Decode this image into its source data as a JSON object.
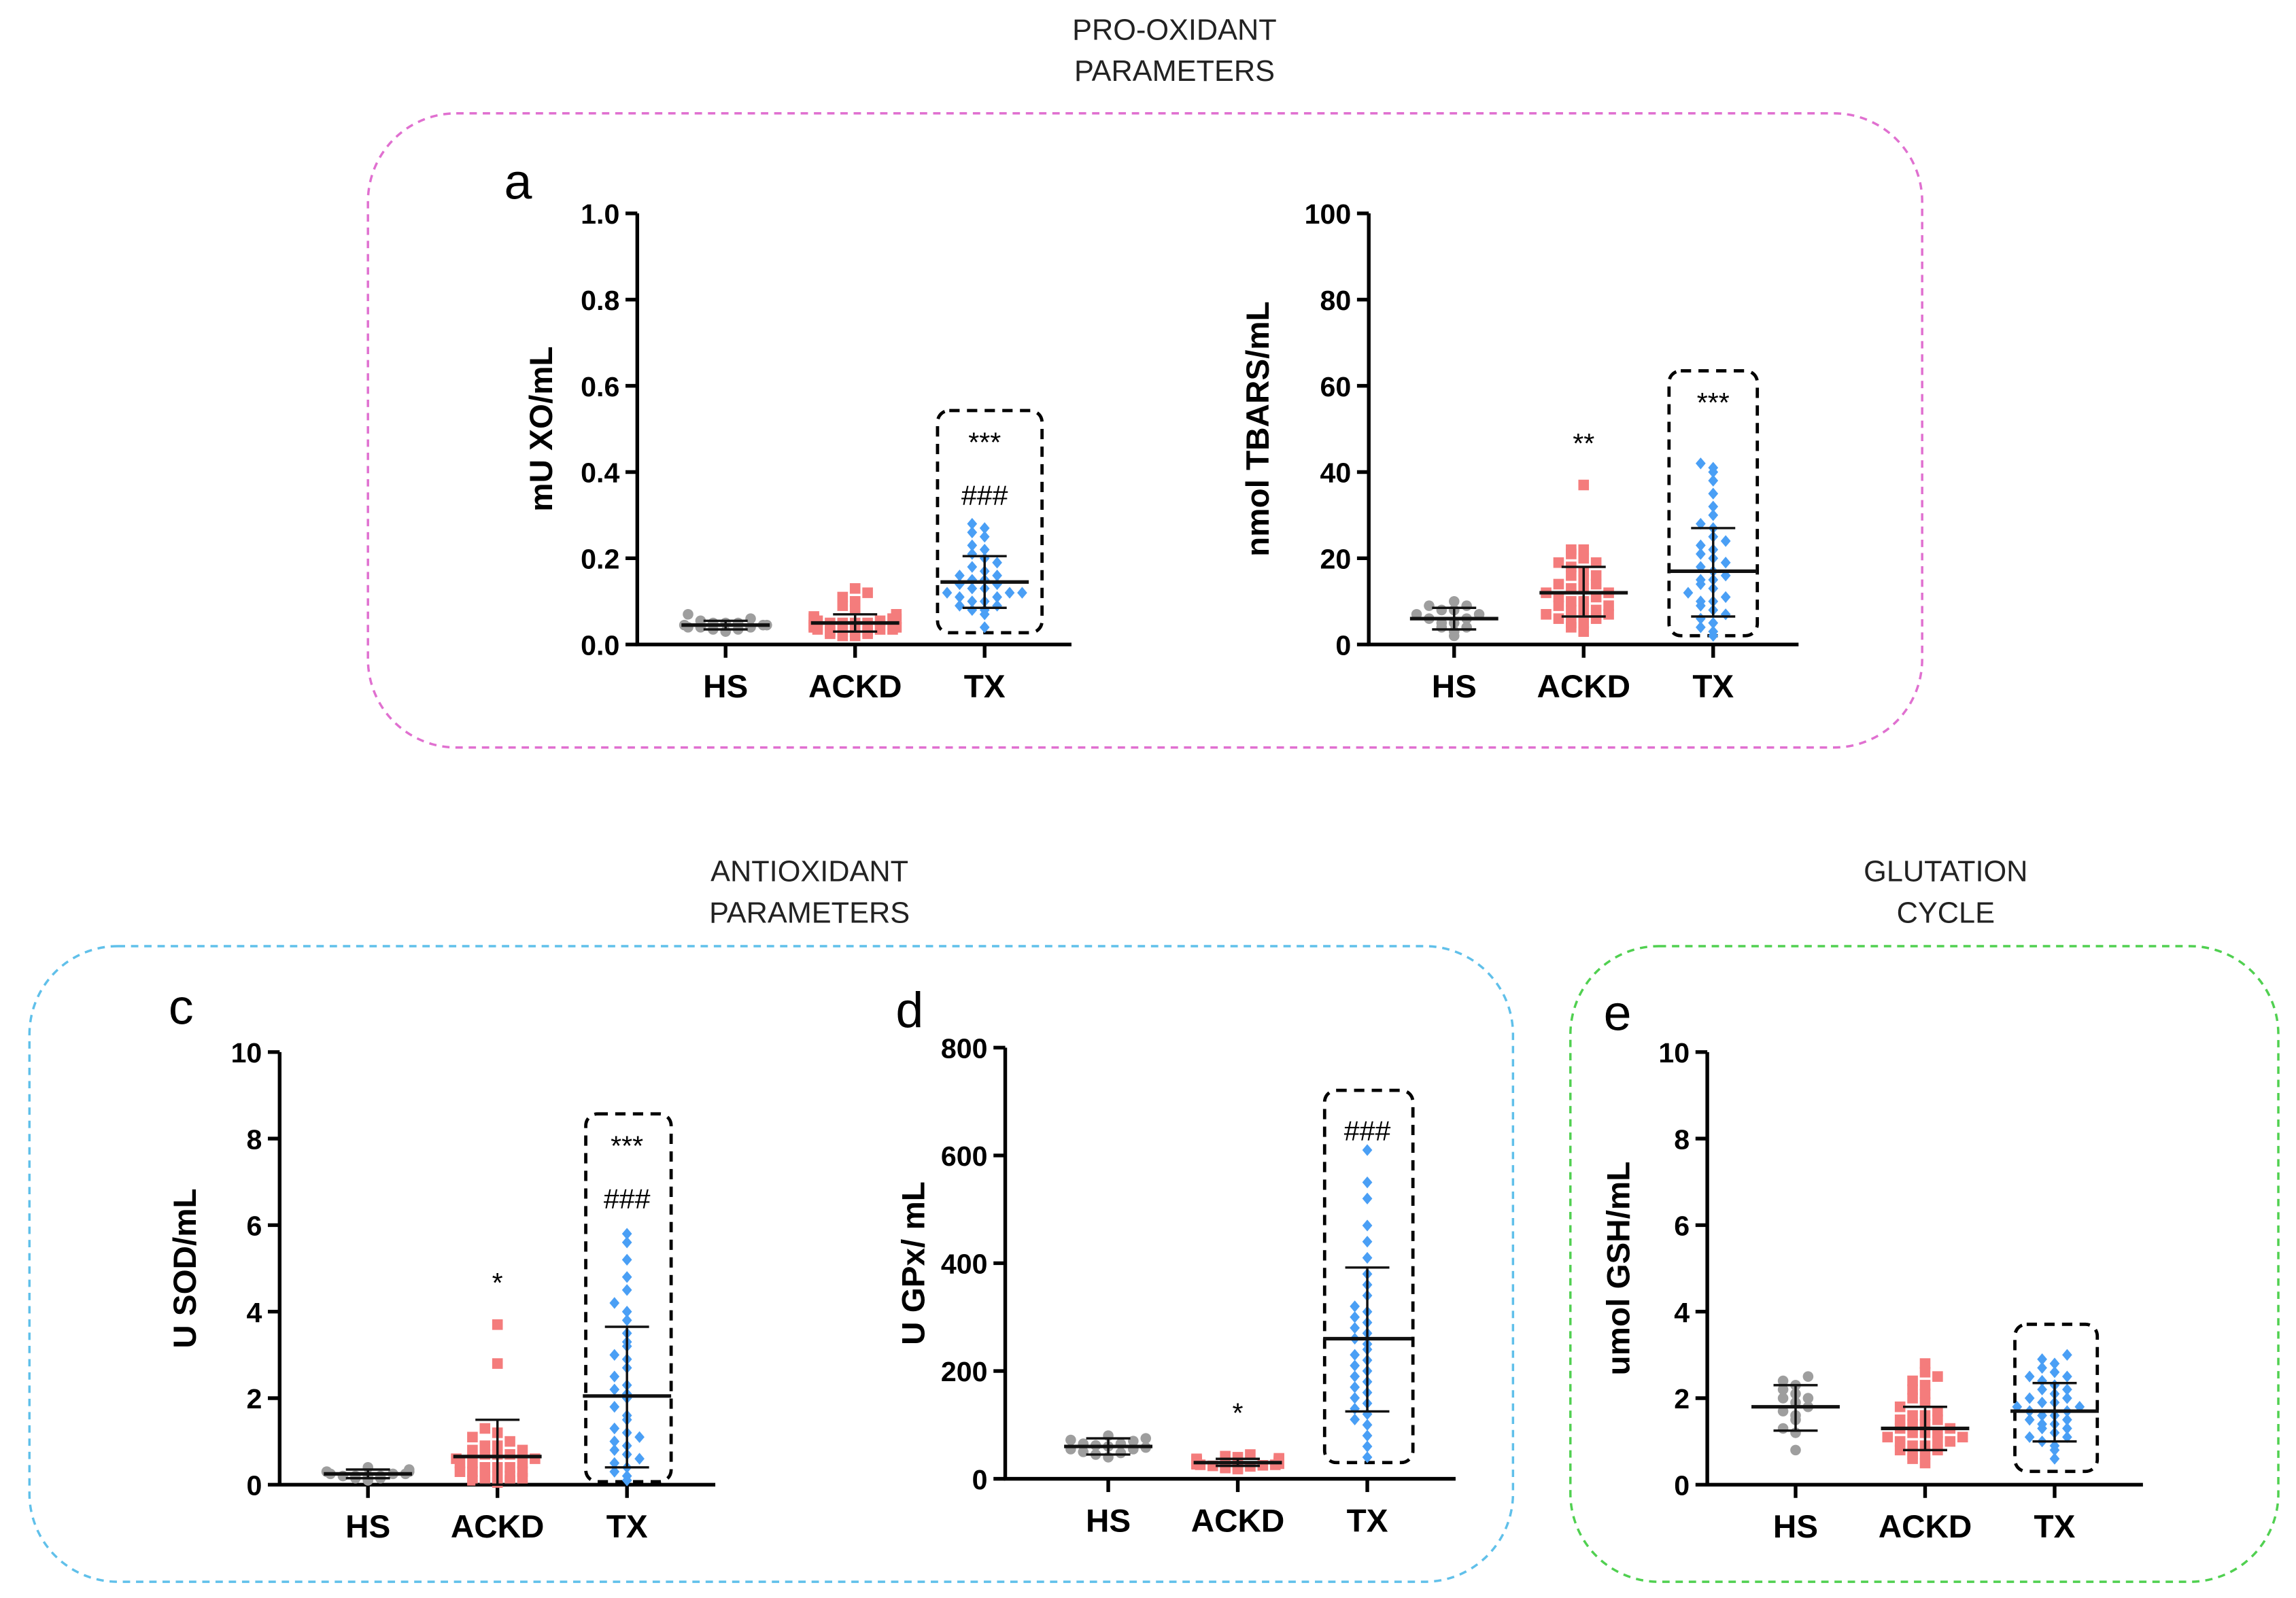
{
  "groups": [
    {
      "title_lines": [
        "PRO-OXIDANT",
        "PARAMETERS"
      ],
      "color": "#e070d0"
    },
    {
      "title_lines": [
        "ANTIOXIDANT",
        "PARAMETERS"
      ],
      "color": "#60c0ea"
    },
    {
      "title_lines": [
        "GLUTATION",
        "CYCLE"
      ],
      "color": "#50d050"
    }
  ],
  "series_colors": {
    "HS": "#9e9e9e",
    "ACKD": "#f47c7c",
    "TX": "#4a9ff5"
  },
  "series_markers": {
    "HS": "circle",
    "ACKD": "square",
    "TX": "diamond"
  },
  "chart_data": [
    {
      "type": "scatter",
      "letter": "a",
      "ylabel": "mU XO/mL",
      "ylim": [
        0,
        1.0
      ],
      "yticks": [
        "0.0",
        "0.2",
        "0.4",
        "0.6",
        "0.8",
        "1.0"
      ],
      "ytick_values": [
        0,
        0.2,
        0.4,
        0.6,
        0.8,
        1.0
      ],
      "categories": [
        "HS",
        "ACKD",
        "TX"
      ],
      "highlight": "TX",
      "significance": {
        "HS": [],
        "ACKD": [],
        "TX": [
          "***",
          "###"
        ]
      },
      "series": [
        {
          "name": "HS",
          "mean": 0.045,
          "err": [
            0.035,
            0.055
          ],
          "values": [
            0.03,
            0.035,
            0.04,
            0.04,
            0.045,
            0.045,
            0.05,
            0.05,
            0.055,
            0.04,
            0.035,
            0.06,
            0.05,
            0.045,
            0.07
          ]
        },
        {
          "name": "ACKD",
          "mean": 0.05,
          "err": [
            0.03,
            0.07
          ],
          "values": [
            0.02,
            0.025,
            0.03,
            0.03,
            0.035,
            0.035,
            0.04,
            0.04,
            0.04,
            0.045,
            0.045,
            0.05,
            0.05,
            0.05,
            0.055,
            0.055,
            0.06,
            0.06,
            0.03,
            0.025,
            0.035,
            0.045,
            0.04,
            0.05,
            0.06,
            0.065,
            0.07,
            0.08,
            0.09,
            0.1,
            0.11,
            0.12,
            0.13,
            0.02,
            0.03
          ]
        },
        {
          "name": "TX",
          "mean": 0.145,
          "err": [
            0.085,
            0.205
          ],
          "values": [
            0.04,
            0.07,
            0.08,
            0.08,
            0.09,
            0.09,
            0.1,
            0.1,
            0.11,
            0.11,
            0.12,
            0.12,
            0.13,
            0.13,
            0.14,
            0.14,
            0.15,
            0.15,
            0.16,
            0.16,
            0.17,
            0.18,
            0.19,
            0.2,
            0.21,
            0.22,
            0.23,
            0.25,
            0.26,
            0.28,
            0.27,
            0.12
          ]
        }
      ]
    },
    {
      "type": "scatter",
      "letter": "",
      "ylabel": "nmol TBARS/mL",
      "ylim": [
        0,
        100
      ],
      "yticks": [
        "0",
        "20",
        "40",
        "60",
        "80",
        "100"
      ],
      "ytick_values": [
        0,
        20,
        40,
        60,
        80,
        100
      ],
      "categories": [
        "HS",
        "ACKD",
        "TX"
      ],
      "highlight": "TX",
      "significance": {
        "HS": [],
        "ACKD": [
          "**"
        ],
        "TX": [
          "***"
        ]
      },
      "series": [
        {
          "name": "HS",
          "mean": 6,
          "err": [
            3.5,
            8.5
          ],
          "values": [
            2,
            3,
            4,
            4,
            5,
            5,
            6,
            6,
            7,
            7,
            8,
            8,
            9,
            9,
            10
          ]
        },
        {
          "name": "ACKD",
          "mean": 12,
          "err": [
            6.5,
            18
          ],
          "values": [
            3,
            4,
            5,
            5,
            6,
            7,
            7,
            8,
            8,
            9,
            9,
            10,
            10,
            11,
            11,
            12,
            12,
            13,
            13,
            14,
            14,
            15,
            16,
            16,
            17,
            18,
            19,
            20,
            21,
            22,
            22,
            19,
            8,
            6,
            37
          ]
        },
        {
          "name": "TX",
          "mean": 17,
          "err": [
            6.5,
            27
          ],
          "values": [
            2,
            3,
            4,
            5,
            6,
            7,
            8,
            9,
            10,
            11,
            12,
            13,
            14,
            15,
            16,
            17,
            18,
            19,
            20,
            21,
            22,
            23,
            24,
            25,
            27,
            28,
            30,
            32,
            35,
            38,
            40,
            41,
            42,
            10,
            15
          ]
        }
      ]
    },
    {
      "type": "scatter",
      "letter": "c",
      "ylabel": "U SOD/mL",
      "ylim": [
        0,
        10
      ],
      "yticks": [
        "0",
        "2",
        "4",
        "6",
        "8",
        "10"
      ],
      "ytick_values": [
        0,
        2,
        4,
        6,
        8,
        10
      ],
      "categories": [
        "HS",
        "ACKD",
        "TX"
      ],
      "highlight": "TX",
      "significance": {
        "HS": [],
        "ACKD": [
          "*"
        ],
        "TX": [
          "***",
          "###"
        ]
      },
      "series": [
        {
          "name": "HS",
          "mean": 0.25,
          "err": [
            0.15,
            0.35
          ],
          "values": [
            0.1,
            0.15,
            0.15,
            0.2,
            0.2,
            0.25,
            0.25,
            0.3,
            0.3,
            0.25,
            0.2,
            0.35,
            0.4,
            0.3,
            0.2
          ]
        },
        {
          "name": "ACKD",
          "mean": 0.65,
          "err": [
            0,
            1.5
          ],
          "values": [
            0.05,
            0.1,
            0.1,
            0.15,
            0.2,
            0.2,
            0.3,
            0.3,
            0.4,
            0.4,
            0.5,
            0.5,
            0.6,
            0.6,
            0.7,
            0.7,
            0.8,
            0.8,
            0.9,
            0.9,
            1.0,
            1.1,
            1.2,
            1.3,
            0.3,
            0.5,
            0.7,
            0.2,
            0.1,
            2.8,
            3.7,
            0.4
          ]
        },
        {
          "name": "TX",
          "mean": 2.05,
          "err": [
            0.4,
            3.65
          ],
          "values": [
            0.1,
            0.2,
            0.3,
            0.4,
            0.5,
            0.6,
            0.8,
            0.9,
            1.0,
            1.2,
            1.3,
            1.5,
            1.6,
            1.8,
            2.0,
            2.1,
            2.3,
            2.5,
            2.7,
            2.9,
            3.0,
            3.2,
            3.5,
            3.8,
            4.0,
            4.2,
            4.5,
            4.8,
            5.2,
            5.6,
            5.8,
            1.1,
            0.7,
            2.2,
            3.3
          ]
        }
      ]
    },
    {
      "type": "scatter",
      "letter": "d",
      "ylabel": "U GPx/ mL",
      "ylim": [
        0,
        800
      ],
      "yticks": [
        "0",
        "200",
        "400",
        "600",
        "800"
      ],
      "ytick_values": [
        0,
        200,
        400,
        600,
        800
      ],
      "categories": [
        "HS",
        "ACKD",
        "TX"
      ],
      "highlight": "TX",
      "significance": {
        "HS": [],
        "ACKD": [
          "*"
        ],
        "TX": [
          "###"
        ]
      },
      "series": [
        {
          "name": "HS",
          "mean": 60,
          "err": [
            45,
            75
          ],
          "values": [
            40,
            45,
            48,
            50,
            55,
            55,
            58,
            60,
            62,
            65,
            65,
            70,
            72,
            75,
            80
          ]
        },
        {
          "name": "ACKD",
          "mean": 30,
          "err": [
            24,
            37
          ],
          "values": [
            18,
            20,
            22,
            24,
            25,
            26,
            27,
            28,
            28,
            29,
            30,
            30,
            31,
            32,
            32,
            33,
            34,
            35,
            36,
            37,
            38,
            40,
            42,
            45,
            26,
            29,
            31,
            34,
            23,
            21
          ]
        },
        {
          "name": "TX",
          "mean": 260,
          "err": [
            125,
            392
          ],
          "values": [
            40,
            60,
            80,
            100,
            110,
            120,
            130,
            140,
            150,
            160,
            170,
            180,
            190,
            200,
            210,
            220,
            230,
            240,
            250,
            260,
            270,
            280,
            290,
            300,
            310,
            320,
            340,
            360,
            380,
            410,
            440,
            470,
            520,
            550,
            610
          ]
        }
      ]
    },
    {
      "type": "scatter",
      "letter": "e",
      "ylabel": "umol GSH/mL",
      "ylim": [
        0,
        10
      ],
      "yticks": [
        "0",
        "2",
        "4",
        "6",
        "8",
        "10"
      ],
      "ytick_values": [
        0,
        2,
        4,
        6,
        8,
        10
      ],
      "categories": [
        "HS",
        "ACKD",
        "TX"
      ],
      "highlight": "TX",
      "significance": {
        "HS": [],
        "ACKD": [],
        "TX": []
      },
      "series": [
        {
          "name": "HS",
          "mean": 1.8,
          "err": [
            1.25,
            2.3
          ],
          "values": [
            0.8,
            1.2,
            1.3,
            1.5,
            1.6,
            1.7,
            1.8,
            1.9,
            2.0,
            2.0,
            2.1,
            2.2,
            2.3,
            2.4,
            2.5
          ]
        },
        {
          "name": "ACKD",
          "mean": 1.3,
          "err": [
            0.8,
            1.8
          ],
          "values": [
            0.5,
            0.6,
            0.7,
            0.7,
            0.8,
            0.8,
            0.9,
            0.9,
            1.0,
            1.0,
            1.1,
            1.1,
            1.2,
            1.2,
            1.3,
            1.3,
            1.4,
            1.4,
            1.5,
            1.5,
            1.6,
            1.6,
            1.7,
            1.8,
            1.9,
            2.0,
            2.1,
            2.2,
            2.3,
            2.4,
            2.5,
            2.6,
            2.8,
            1.0,
            1.2
          ]
        },
        {
          "name": "TX",
          "mean": 1.7,
          "err": [
            1.0,
            2.35
          ],
          "values": [
            0.6,
            0.8,
            0.9,
            1.0,
            1.1,
            1.2,
            1.3,
            1.4,
            1.5,
            1.5,
            1.6,
            1.6,
            1.7,
            1.7,
            1.8,
            1.8,
            1.9,
            2.0,
            2.1,
            2.2,
            2.3,
            2.4,
            2.5,
            2.6,
            2.7,
            2.8,
            2.9,
            3.0,
            1.3,
            1.9,
            2.2,
            1.1,
            1.4,
            2.0,
            2.5
          ]
        }
      ]
    }
  ]
}
